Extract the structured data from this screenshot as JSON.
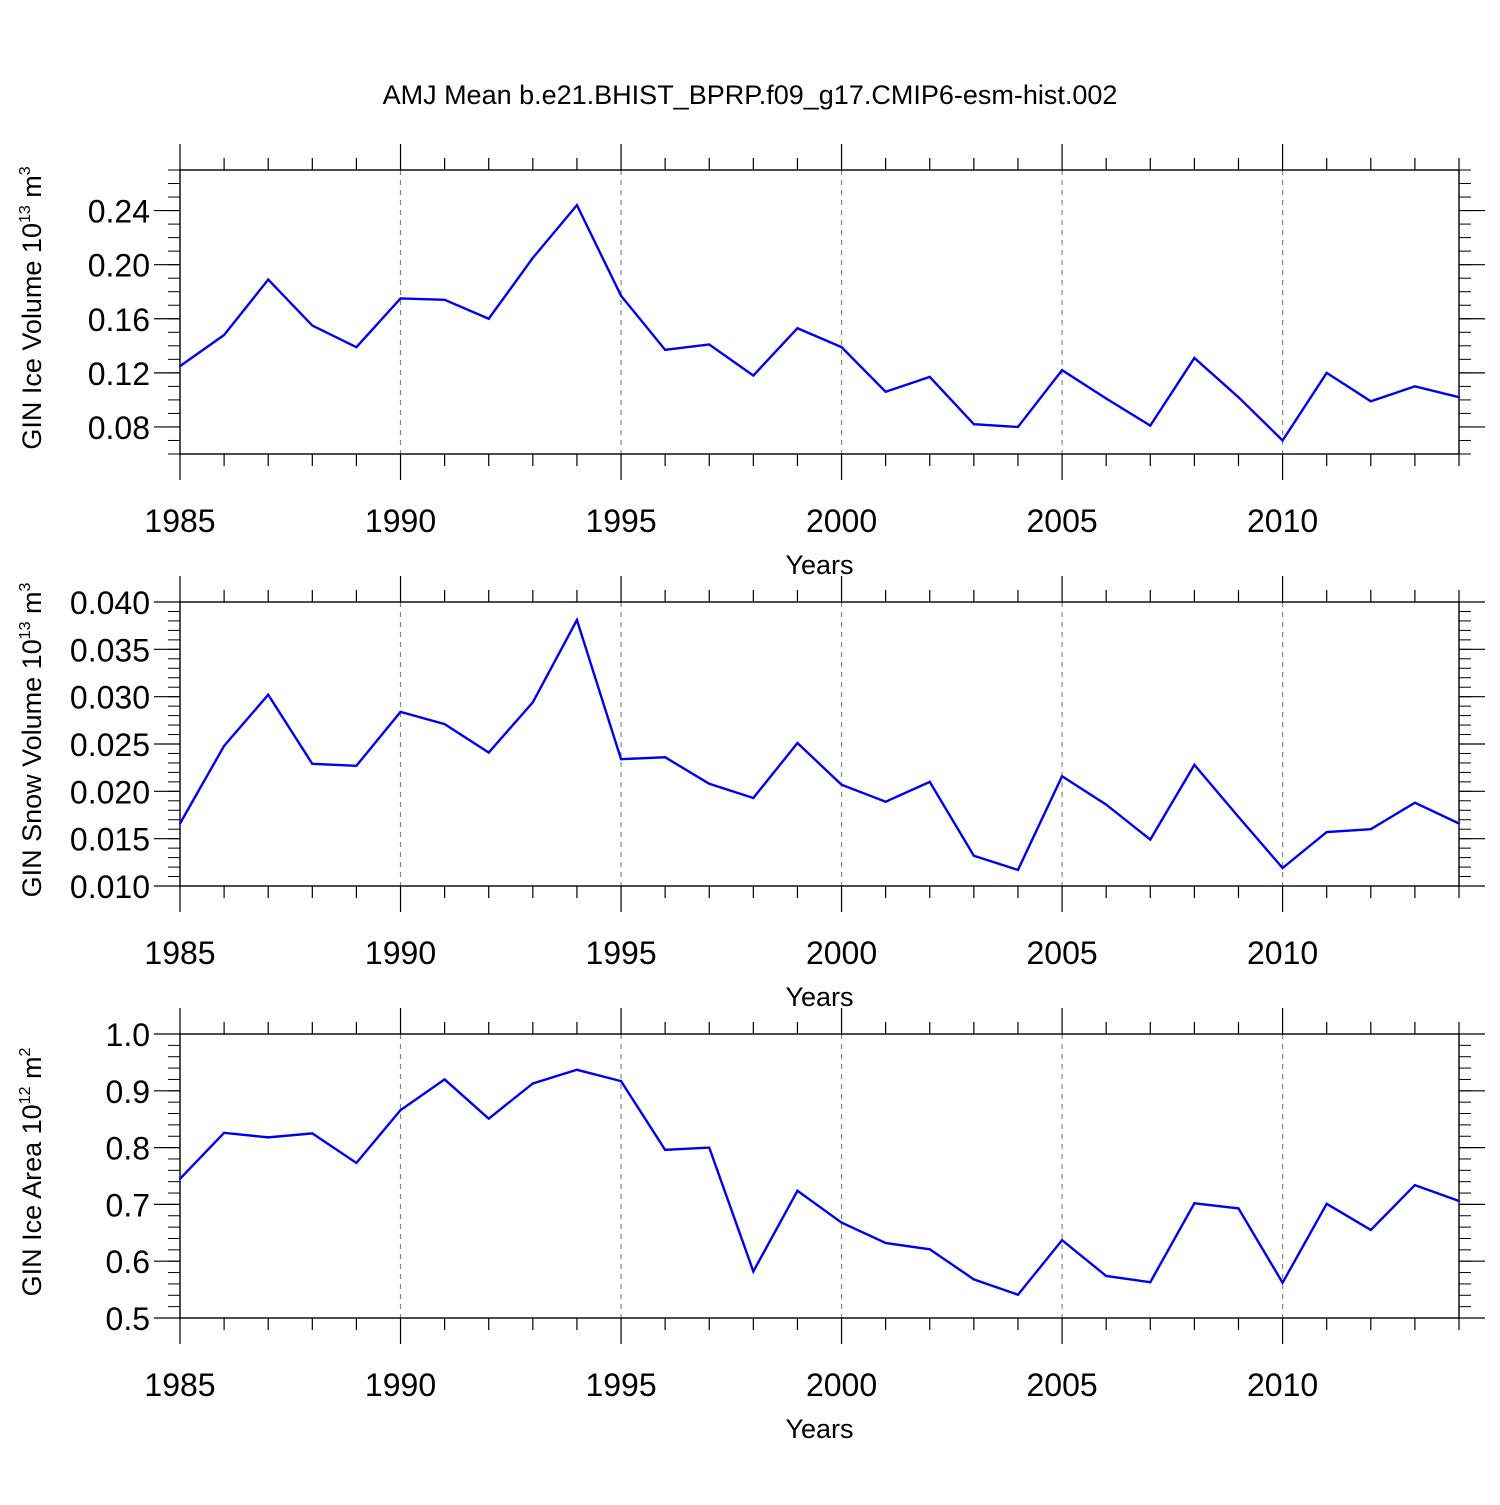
{
  "figure_title": "AMJ Mean b.e21.BHIST_BPRP.f09_g17.CMIP6-esm-hist.002",
  "colors": {
    "line": "#0000ee",
    "axis": "#000000",
    "grid": "#888888"
  },
  "chart_data": [
    {
      "type": "line",
      "title": "",
      "xlabel": "Years",
      "ylabel_main": "GIN Ice Volume 10",
      "ylabel_exp": "13",
      "ylabel_unit": " m",
      "ylabel_unit_exp": "3",
      "xlim": [
        1985,
        2014
      ],
      "ylim": [
        0.06,
        0.27
      ],
      "yticks": [
        0.08,
        0.12,
        0.16,
        0.2,
        0.24
      ],
      "ytick_labels": [
        "0.08",
        "0.12",
        "0.16",
        "0.20",
        "0.24"
      ],
      "yminor_step": 0.01,
      "xticks": [
        1985,
        1990,
        1995,
        2000,
        2005,
        2010
      ],
      "xtick_labels": [
        "1985",
        "1990",
        "1995",
        "2000",
        "2005",
        "2010"
      ],
      "grid": "vertical dashed at major x ticks",
      "series": [
        {
          "name": "GIN Ice Volume",
          "x": [
            1985,
            1986,
            1987,
            1988,
            1989,
            1990,
            1991,
            1992,
            1993,
            1994,
            1995,
            1996,
            1997,
            1998,
            1999,
            2000,
            2001,
            2002,
            2003,
            2004,
            2005,
            2006,
            2007,
            2008,
            2009,
            2010,
            2011,
            2012,
            2013,
            2014
          ],
          "values": [
            0.125,
            0.148,
            0.189,
            0.155,
            0.139,
            0.175,
            0.174,
            0.16,
            0.205,
            0.244,
            0.177,
            0.137,
            0.141,
            0.118,
            0.153,
            0.139,
            0.106,
            0.117,
            0.082,
            0.08,
            0.122,
            0.101,
            0.081,
            0.131,
            0.102,
            0.07,
            0.12,
            0.099,
            0.11,
            0.102
          ]
        }
      ]
    },
    {
      "type": "line",
      "title": "",
      "xlabel": "Years",
      "ylabel_main": "GIN Snow Volume 10",
      "ylabel_exp": "13",
      "ylabel_unit": " m",
      "ylabel_unit_exp": "3",
      "xlim": [
        1985,
        2014
      ],
      "ylim": [
        0.01,
        0.04
      ],
      "yticks": [
        0.01,
        0.015,
        0.02,
        0.025,
        0.03,
        0.035,
        0.04
      ],
      "ytick_labels": [
        "0.010",
        "0.015",
        "0.020",
        "0.025",
        "0.030",
        "0.035",
        "0.040"
      ],
      "yminor_step": 0.001,
      "xticks": [
        1985,
        1990,
        1995,
        2000,
        2005,
        2010
      ],
      "xtick_labels": [
        "1985",
        "1990",
        "1995",
        "2000",
        "2005",
        "2010"
      ],
      "grid": "vertical dashed at major x ticks",
      "series": [
        {
          "name": "GIN Snow Volume",
          "x": [
            1985,
            1986,
            1987,
            1988,
            1989,
            1990,
            1991,
            1992,
            1993,
            1994,
            1995,
            1996,
            1997,
            1998,
            1999,
            2000,
            2001,
            2002,
            2003,
            2004,
            2005,
            2006,
            2007,
            2008,
            2009,
            2010,
            2011,
            2012,
            2013,
            2014
          ],
          "values": [
            0.0166,
            0.0248,
            0.0302,
            0.0229,
            0.0227,
            0.0284,
            0.0271,
            0.0241,
            0.0294,
            0.0381,
            0.0234,
            0.0236,
            0.0208,
            0.0193,
            0.0251,
            0.0207,
            0.0189,
            0.021,
            0.0132,
            0.0117,
            0.0216,
            0.0186,
            0.0149,
            0.0228,
            0.0173,
            0.0119,
            0.0157,
            0.016,
            0.0188,
            0.0166
          ]
        }
      ]
    },
    {
      "type": "line",
      "title": "",
      "xlabel": "Years",
      "ylabel_main": "GIN Ice Area 10",
      "ylabel_exp": "12",
      "ylabel_unit": " m",
      "ylabel_unit_exp": "2",
      "xlim": [
        1985,
        2014
      ],
      "ylim": [
        0.5,
        1.0
      ],
      "yticks": [
        0.5,
        0.6,
        0.7,
        0.8,
        0.9,
        1.0
      ],
      "ytick_labels": [
        "0.5",
        "0.6",
        "0.7",
        "0.8",
        "0.9",
        "1.0"
      ],
      "yminor_step": 0.02,
      "xticks": [
        1985,
        1990,
        1995,
        2000,
        2005,
        2010
      ],
      "xtick_labels": [
        "1985",
        "1990",
        "1995",
        "2000",
        "2005",
        "2010"
      ],
      "grid": "vertical dashed at major x ticks",
      "series": [
        {
          "name": "GIN Ice Area",
          "x": [
            1985,
            1986,
            1987,
            1988,
            1989,
            1990,
            1991,
            1992,
            1993,
            1994,
            1995,
            1996,
            1997,
            1998,
            1999,
            2000,
            2001,
            2002,
            2003,
            2004,
            2005,
            2006,
            2007,
            2008,
            2009,
            2010,
            2011,
            2012,
            2013,
            2014
          ],
          "values": [
            0.745,
            0.826,
            0.818,
            0.825,
            0.773,
            0.866,
            0.92,
            0.851,
            0.913,
            0.937,
            0.917,
            0.796,
            0.8,
            0.582,
            0.724,
            0.668,
            0.632,
            0.621,
            0.568,
            0.541,
            0.637,
            0.574,
            0.563,
            0.702,
            0.693,
            0.562,
            0.701,
            0.655,
            0.734,
            0.706
          ]
        }
      ]
    }
  ]
}
